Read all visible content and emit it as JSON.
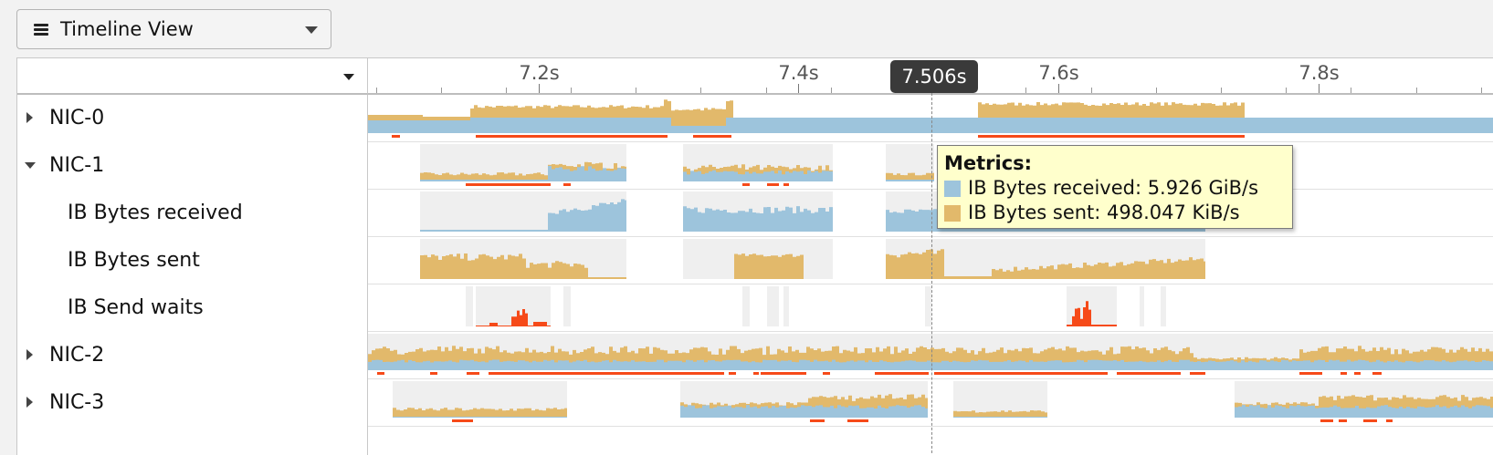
{
  "toolbar": {
    "view_selector": {
      "label": "Timeline View"
    }
  },
  "timeline": {
    "ticks": [
      {
        "value": 7.2,
        "label": "7.2s"
      },
      {
        "value": 7.4,
        "label": "7.4s"
      },
      {
        "value": 7.6,
        "label": "7.6s"
      },
      {
        "value": 7.8,
        "label": "7.8s"
      }
    ],
    "range_s": [
      7.069,
      7.935
    ],
    "cursor": {
      "value": 7.506,
      "label": "7.506s"
    }
  },
  "tree": {
    "rows": [
      {
        "label": "NIC-0",
        "expanded": false,
        "level": 0
      },
      {
        "label": "NIC-1",
        "expanded": true,
        "level": 0
      },
      {
        "label": "IB Bytes received",
        "level": 1
      },
      {
        "label": "IB Bytes sent",
        "level": 1
      },
      {
        "label": "IB Send waits",
        "level": 1
      },
      {
        "label": "NIC-2",
        "expanded": false,
        "level": 0
      },
      {
        "label": "NIC-3",
        "expanded": false,
        "level": 0
      }
    ]
  },
  "tooltip": {
    "title": "Metrics:",
    "items": [
      {
        "swatch": "received",
        "text": "IB Bytes received: 5.926 GiB/s"
      },
      {
        "swatch": "sent",
        "text": "IB Bytes sent: 498.047 KiB/s"
      }
    ]
  },
  "colors": {
    "received": "#9dc4dc",
    "sent": "#e2b96b",
    "send_waits": "#f64a19",
    "activity_bg": "#efefef",
    "row_divider": "#e0e0e0"
  }
}
